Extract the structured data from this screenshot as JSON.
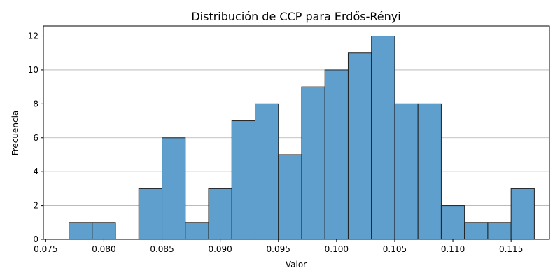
{
  "chart_data": {
    "type": "bar",
    "title": "Distribución de CCP para Erdős-Rényi",
    "xlabel": "Valor",
    "ylabel": "Frecuencia",
    "xlim": [
      0.0748,
      0.1183
    ],
    "ylim": [
      0,
      12.6
    ],
    "x_ticks": [
      "0.075",
      "0.080",
      "0.085",
      "0.090",
      "0.095",
      "0.100",
      "0.105",
      "0.110",
      "0.115"
    ],
    "y_ticks": [
      "0",
      "2",
      "4",
      "6",
      "8",
      "10",
      "12"
    ],
    "bin_edges": [
      0.077,
      0.079,
      0.081,
      0.083,
      0.085,
      0.087,
      0.089,
      0.091,
      0.093,
      0.095,
      0.097,
      0.099,
      0.101,
      0.103,
      0.105,
      0.107,
      0.109,
      0.111,
      0.113,
      0.115,
      0.117
    ],
    "counts": [
      1,
      1,
      0,
      3,
      6,
      1,
      3,
      7,
      8,
      5,
      9,
      10,
      11,
      12,
      8,
      8,
      2,
      1,
      1,
      3
    ],
    "grid": "y",
    "bar_color": "#5f9fcd",
    "edge_color": "#1f1f1f"
  }
}
